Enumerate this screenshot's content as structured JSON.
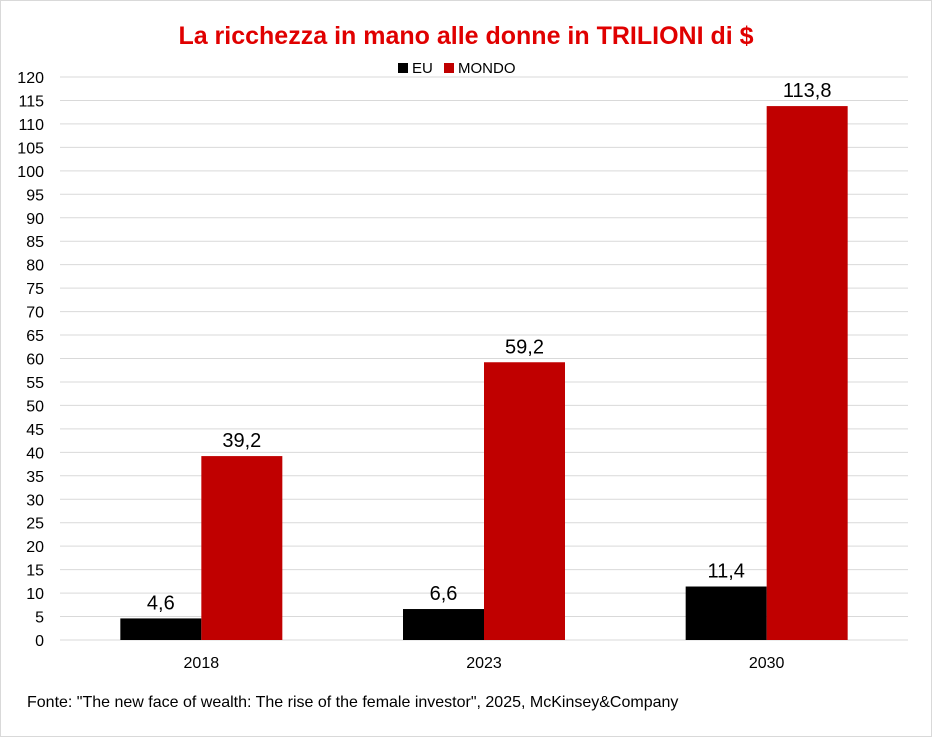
{
  "chart_data": {
    "type": "bar",
    "title": "La ricchezza in mano alle donne in TRILIONI di $",
    "categories": [
      "2018",
      "2023",
      "2030"
    ],
    "series": [
      {
        "name": "EU",
        "values": [
          4.6,
          6.6,
          11.4
        ],
        "labels": [
          "4,6",
          "6,6",
          "11,4"
        ],
        "color": "#000000"
      },
      {
        "name": "MONDO",
        "values": [
          39.2,
          59.2,
          113.8
        ],
        "labels": [
          "39,2",
          "59,2",
          "113,8"
        ],
        "color": "#c00000"
      }
    ],
    "xlabel": "",
    "ylabel": "",
    "ylim": [
      0,
      120
    ],
    "ytick_step": 5,
    "grid": true,
    "legend_position": "top",
    "title_color": "#e00000"
  },
  "footer": "Fonte: \"The new face of wealth: The rise of the female investor\", 2025, McKinsey&Company"
}
